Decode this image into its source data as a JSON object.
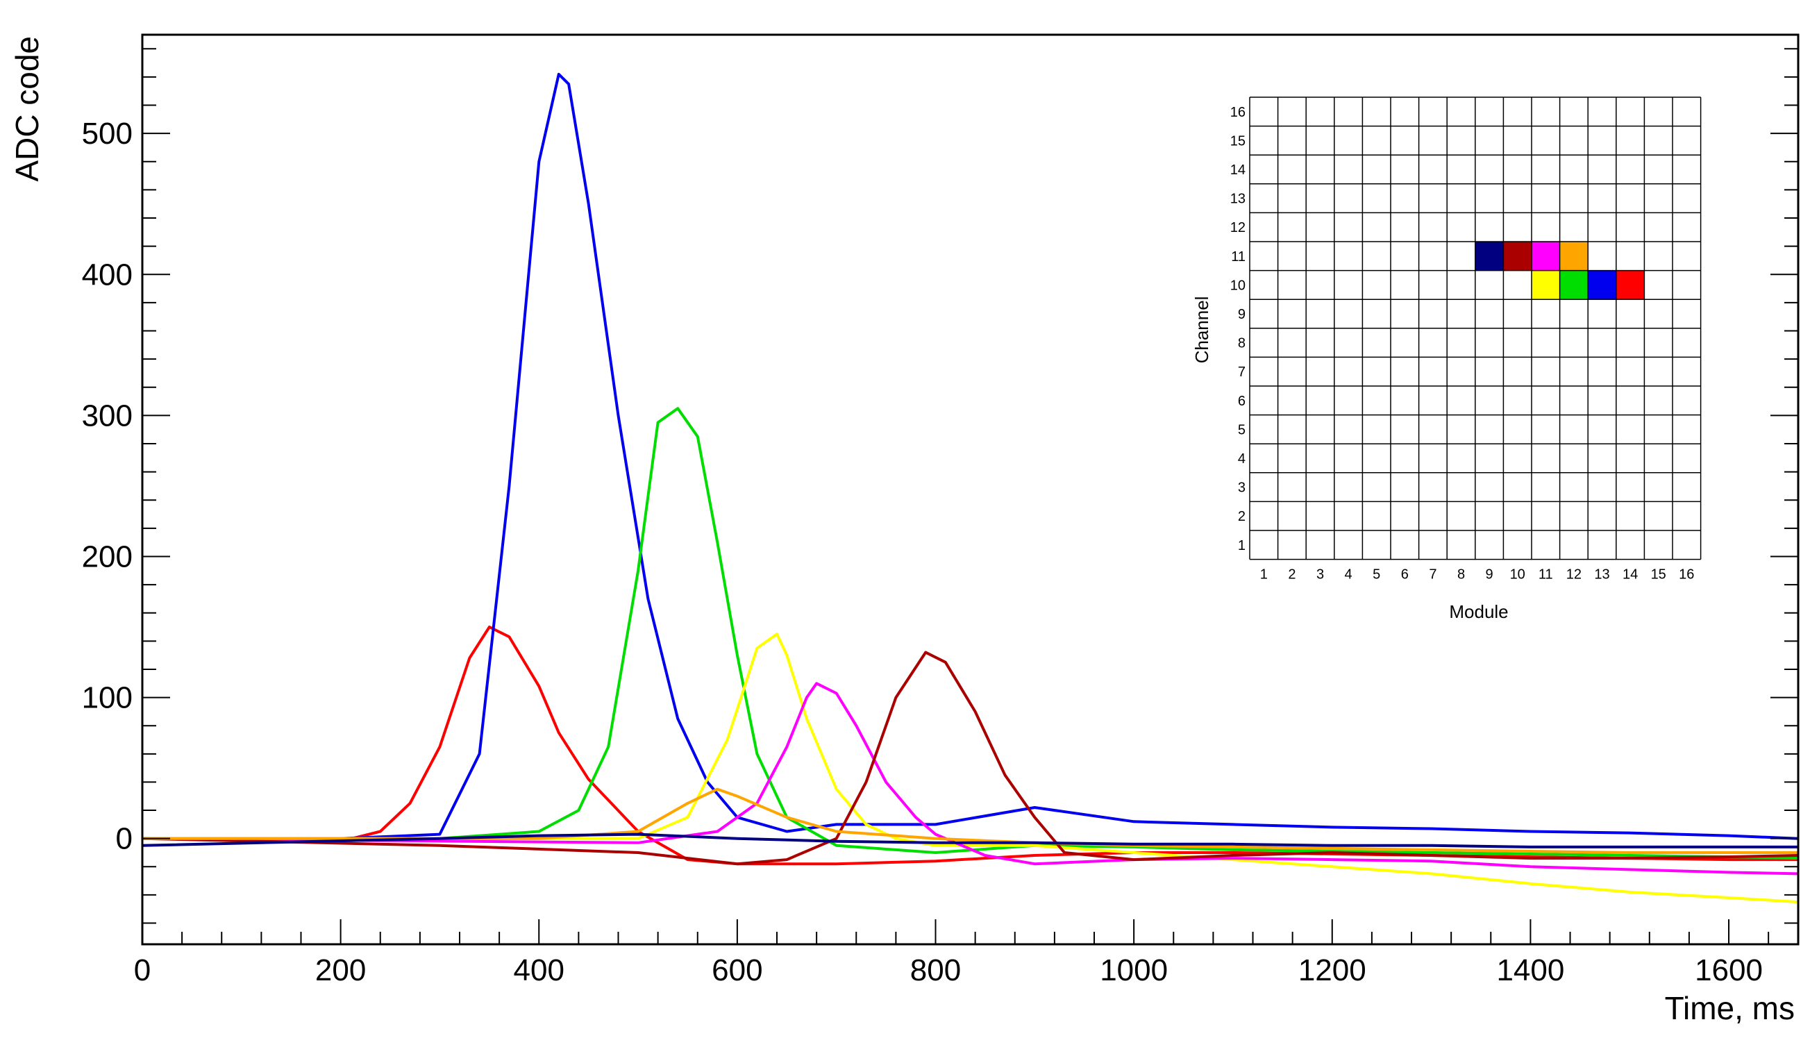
{
  "chart_data": {
    "type": "line",
    "xlabel": "Time, ms",
    "ylabel": "ADC code",
    "xlim": [
      0,
      1670
    ],
    "ylim": [
      -75,
      570
    ],
    "x_ticks": [
      0,
      200,
      400,
      600,
      800,
      1000,
      1200,
      1400,
      1600
    ],
    "y_ticks": [
      0,
      100,
      200,
      300,
      400,
      500
    ],
    "x_tick_labels": [
      "0",
      "200",
      "400",
      "600",
      "800",
      "1000",
      "1200",
      "1400",
      "1600"
    ],
    "y_tick_labels": [
      "0",
      "100",
      "200",
      "300",
      "400",
      "500"
    ],
    "grid": false,
    "series": [
      {
        "color": "#ff0000",
        "x": [
          0,
          200,
          240,
          270,
          300,
          330,
          350,
          370,
          400,
          420,
          450,
          500,
          550,
          600,
          700,
          800,
          900,
          1000,
          1100,
          1200,
          1300,
          1400,
          1500,
          1600,
          1670
        ],
        "y": [
          0,
          -2,
          5,
          25,
          65,
          128,
          150,
          143,
          108,
          75,
          42,
          5,
          -15,
          -18,
          -18,
          -16,
          -12,
          -10,
          -10,
          -11,
          -12,
          -13,
          -14,
          -15,
          -15
        ]
      },
      {
        "color": "#0000ee",
        "x": [
          0,
          200,
          300,
          340,
          370,
          400,
          420,
          430,
          450,
          480,
          510,
          540,
          570,
          600,
          650,
          700,
          800,
          900,
          1000,
          1100,
          1200,
          1300,
          1400,
          1500,
          1600,
          1670
        ],
        "y": [
          0,
          0,
          3,
          60,
          250,
          480,
          542,
          535,
          450,
          300,
          170,
          85,
          40,
          15,
          5,
          10,
          10,
          22,
          12,
          10,
          8,
          7,
          5,
          4,
          2,
          0
        ]
      },
      {
        "color": "#00dd00",
        "x": [
          0,
          300,
          400,
          440,
          470,
          500,
          520,
          540,
          560,
          580,
          600,
          620,
          650,
          700,
          800,
          900,
          1000,
          1100,
          1200,
          1300,
          1400,
          1500,
          1600,
          1670
        ],
        "y": [
          0,
          0,
          5,
          20,
          65,
          190,
          295,
          305,
          285,
          210,
          130,
          60,
          15,
          -5,
          -10,
          -5,
          -6,
          -8,
          -9,
          -10,
          -11,
          -12,
          -13,
          -14
        ]
      },
      {
        "color": "#ffff00",
        "x": [
          0,
          400,
          500,
          550,
          590,
          620,
          640,
          650,
          670,
          700,
          730,
          760,
          800,
          900,
          1000,
          1100,
          1200,
          1300,
          1400,
          1500,
          1600,
          1670
        ],
        "y": [
          0,
          0,
          0,
          15,
          70,
          135,
          145,
          130,
          85,
          35,
          10,
          0,
          -5,
          -5,
          -10,
          -15,
          -20,
          -25,
          -32,
          -38,
          -42,
          -45
        ]
      },
      {
        "color": "#ff00ff",
        "x": [
          0,
          500,
          580,
          620,
          650,
          670,
          680,
          700,
          720,
          750,
          780,
          800,
          850,
          900,
          1000,
          1100,
          1200,
          1300,
          1400,
          1500,
          1600,
          1670
        ],
        "y": [
          0,
          -3,
          5,
          25,
          65,
          100,
          110,
          103,
          80,
          40,
          15,
          3,
          -12,
          -18,
          -15,
          -14,
          -15,
          -16,
          -20,
          -22,
          -24,
          -25
        ]
      },
      {
        "color": "#aa0000",
        "x": [
          0,
          300,
          500,
          600,
          650,
          700,
          730,
          760,
          790,
          810,
          840,
          870,
          900,
          930,
          1000,
          1100,
          1200,
          1300,
          1400,
          1500,
          1600,
          1670
        ],
        "y": [
          0,
          -5,
          -10,
          -18,
          -15,
          0,
          40,
          100,
          132,
          125,
          90,
          45,
          15,
          -10,
          -15,
          -12,
          -10,
          -12,
          -14,
          -14,
          -13,
          -12
        ]
      },
      {
        "color": "#ffa500",
        "x": [
          0,
          400,
          500,
          550,
          580,
          600,
          650,
          700,
          800,
          900,
          1000,
          1100,
          1200,
          1300,
          1400,
          1500,
          1600,
          1670
        ],
        "y": [
          0,
          0,
          5,
          25,
          35,
          30,
          15,
          5,
          0,
          -3,
          -5,
          -6,
          -7,
          -8,
          -9,
          -10,
          -10,
          -10
        ]
      },
      {
        "color": "#000080",
        "x": [
          0,
          300,
          400,
          500,
          600,
          700,
          800,
          900,
          1000,
          1100,
          1200,
          1300,
          1400,
          1500,
          1600,
          1670
        ],
        "y": [
          -5,
          0,
          2,
          3,
          0,
          -2,
          -3,
          -3,
          -4,
          -4,
          -5,
          -5,
          -6,
          -6,
          -6,
          -6
        ]
      }
    ],
    "inset": {
      "type": "heatmap",
      "xlabel": "Module",
      "ylabel": "Channel",
      "x_tick_labels": [
        "1",
        "2",
        "3",
        "4",
        "5",
        "6",
        "7",
        "8",
        "9",
        "10",
        "11",
        "12",
        "13",
        "14",
        "15",
        "16"
      ],
      "y_tick_labels": [
        "1",
        "2",
        "3",
        "4",
        "5",
        "6",
        "7",
        "8",
        "9",
        "10",
        "11",
        "12",
        "13",
        "14",
        "15",
        "16"
      ],
      "cells": [
        {
          "module": 9,
          "channel": 11,
          "color": "#000080"
        },
        {
          "module": 10,
          "channel": 11,
          "color": "#aa0000"
        },
        {
          "module": 11,
          "channel": 11,
          "color": "#ff00ff"
        },
        {
          "module": 12,
          "channel": 11,
          "color": "#ffa500"
        },
        {
          "module": 11,
          "channel": 10,
          "color": "#ffff00"
        },
        {
          "module": 12,
          "channel": 10,
          "color": "#00dd00"
        },
        {
          "module": 13,
          "channel": 10,
          "color": "#0000ee"
        },
        {
          "module": 14,
          "channel": 10,
          "color": "#ff0000"
        }
      ]
    }
  }
}
